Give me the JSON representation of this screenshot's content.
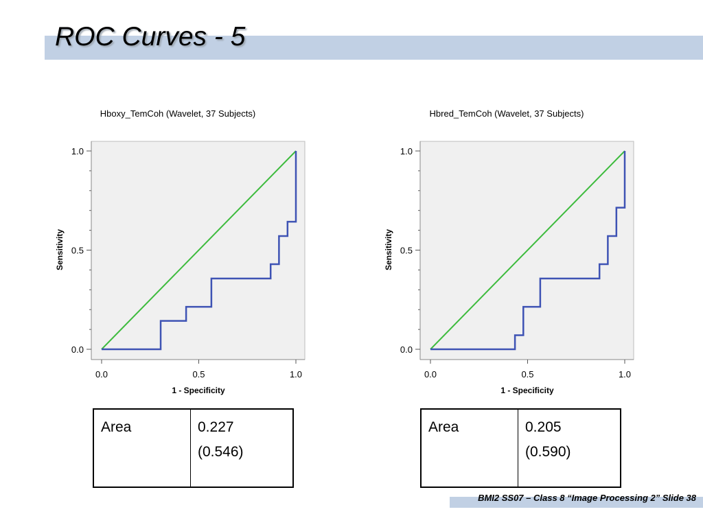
{
  "slide": {
    "title": "ROC Curves - 5",
    "footer": "BMI2 SS07 – Class 8 “Image Processing 2” Slide 38",
    "colors": {
      "band": "#c1d0e4",
      "plot_bg": "#f0f0f0",
      "roc_line": "#3e53b4",
      "reference_line": "#3dbb3d"
    }
  },
  "chart_data": [
    {
      "type": "line",
      "title": "Hboxy_TemCoh (Wavelet, 37 Subjects)",
      "xlabel": "1 - Specificity",
      "ylabel": "Sensitivity",
      "xlim": [
        0,
        1
      ],
      "ylim": [
        0,
        1
      ],
      "x_ticks": [
        "0.0",
        "0.5",
        "1.0"
      ],
      "y_ticks": [
        "0.0",
        "0.5",
        "1.0"
      ],
      "grid": false,
      "series": [
        {
          "role": "roc",
          "x": [
            0,
            0.304,
            0.304,
            0.435,
            0.435,
            0.565,
            0.565,
            0.87,
            0.87,
            0.913,
            0.913,
            0.957,
            0.957,
            1.0,
            1.0
          ],
          "y": [
            0,
            0,
            0.143,
            0.143,
            0.214,
            0.214,
            0.357,
            0.357,
            0.429,
            0.429,
            0.571,
            0.571,
            0.643,
            0.643,
            1.0
          ]
        },
        {
          "role": "reference",
          "x": [
            0,
            1
          ],
          "y": [
            0,
            1
          ]
        }
      ],
      "table": {
        "label": "Area",
        "value": "0.227",
        "detail": "(0.546)"
      }
    },
    {
      "type": "line",
      "title": "Hbred_TemCoh (Wavelet, 37 Subjects)",
      "xlabel": "1 - Specificity",
      "ylabel": "Sensitivity",
      "xlim": [
        0,
        1
      ],
      "ylim": [
        0,
        1
      ],
      "x_ticks": [
        "0.0",
        "0.5",
        "1.0"
      ],
      "y_ticks": [
        "0.0",
        "0.5",
        "1.0"
      ],
      "grid": false,
      "series": [
        {
          "role": "roc",
          "x": [
            0,
            0.435,
            0.435,
            0.478,
            0.478,
            0.565,
            0.565,
            0.87,
            0.87,
            0.913,
            0.913,
            0.957,
            0.957,
            1.0,
            1.0
          ],
          "y": [
            0,
            0,
            0.071,
            0.071,
            0.214,
            0.214,
            0.357,
            0.357,
            0.429,
            0.429,
            0.571,
            0.571,
            0.714,
            0.714,
            1.0
          ]
        },
        {
          "role": "reference",
          "x": [
            0,
            1
          ],
          "y": [
            0,
            1
          ]
        }
      ],
      "table": {
        "label": "Area",
        "value": "0.205",
        "detail": "(0.590)"
      }
    }
  ]
}
